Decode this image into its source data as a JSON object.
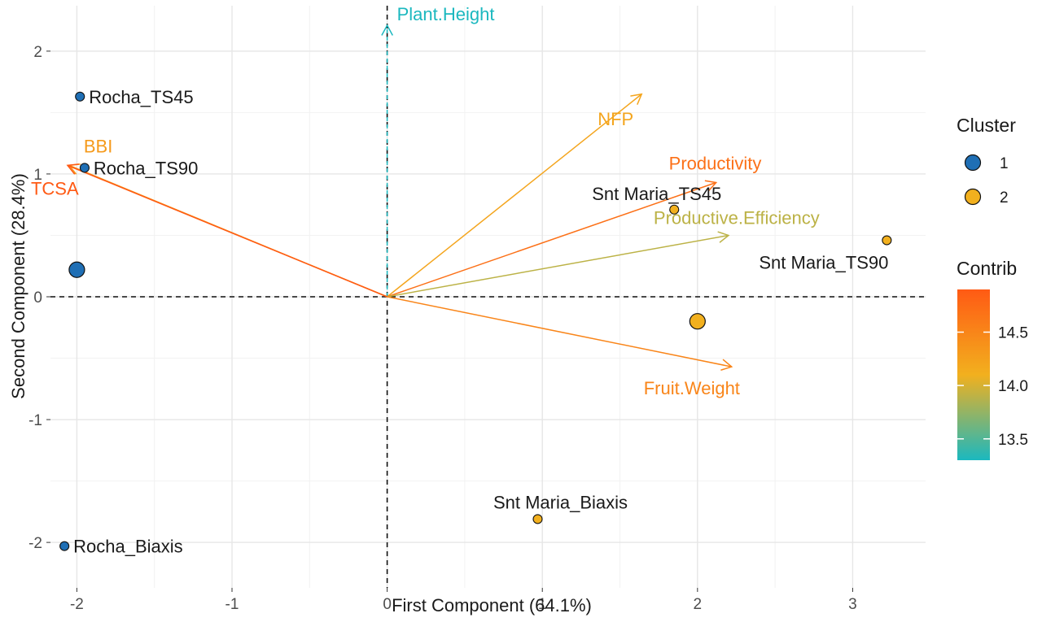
{
  "chart_data": {
    "type": "pca_biplot",
    "xlabel": "First Component (64.1%)",
    "ylabel": "Second Component (28.4%)",
    "xlim": [
      -2.17,
      3.47
    ],
    "ylim": [
      -2.37,
      2.37
    ],
    "xticks": [
      -2,
      -1,
      0,
      1,
      2,
      3
    ],
    "yticks": [
      -2,
      -1,
      0,
      1,
      2
    ],
    "grid": true,
    "cluster_colors": {
      "1": "#1f6fb5",
      "2": "#f2b01e"
    },
    "points": [
      {
        "label": "Rocha_TS45",
        "x": -1.98,
        "y": 1.63,
        "cluster": "1"
      },
      {
        "label": "Rocha_TS90",
        "x": -1.95,
        "y": 1.05,
        "cluster": "1"
      },
      {
        "label": "Rocha_Biaxis",
        "x": -2.08,
        "y": -2.03,
        "cluster": "1"
      },
      {
        "label": "Snt Maria_TS45",
        "x": 1.85,
        "y": 0.71,
        "cluster": "2"
      },
      {
        "label": "Snt Maria_TS90",
        "x": 3.22,
        "y": 0.46,
        "cluster": "2"
      },
      {
        "label": "Snt Maria_Biaxis",
        "x": 0.97,
        "y": -1.81,
        "cluster": "2"
      }
    ],
    "centroids": [
      {
        "cluster": "1",
        "x": -2.0,
        "y": 0.22
      },
      {
        "cluster": "2",
        "x": 2.0,
        "y": -0.2
      }
    ],
    "variables": [
      {
        "name": "Plant.Height",
        "x": 0.0,
        "y": 2.21,
        "contrib": 13.3
      },
      {
        "name": "NFP",
        "x": 1.64,
        "y": 1.65,
        "contrib": 14.2
      },
      {
        "name": "Productivity",
        "x": 2.12,
        "y": 0.93,
        "contrib": 14.7
      },
      {
        "name": "Productive.Efficiency",
        "x": 2.2,
        "y": 0.5,
        "contrib": 13.9
      },
      {
        "name": "Fruit.Weight",
        "x": 2.22,
        "y": -0.57,
        "contrib": 14.5
      },
      {
        "name": "BBI",
        "x": -2.05,
        "y": 1.07,
        "contrib": 14.3
      },
      {
        "name": "TCSA",
        "x": -2.06,
        "y": 1.07,
        "contrib": 14.9
      }
    ],
    "legend": {
      "cluster_title": "Cluster",
      "cluster_items": [
        "1",
        "2"
      ],
      "contrib_title": "Contrib",
      "contrib_range": [
        13.3,
        14.9
      ],
      "contrib_ticks": [
        "14.5",
        "14.0",
        "13.5"
      ],
      "contrib_colors": [
        "#1bb8bf",
        "#f2b01e",
        "#ff5a14"
      ]
    }
  }
}
